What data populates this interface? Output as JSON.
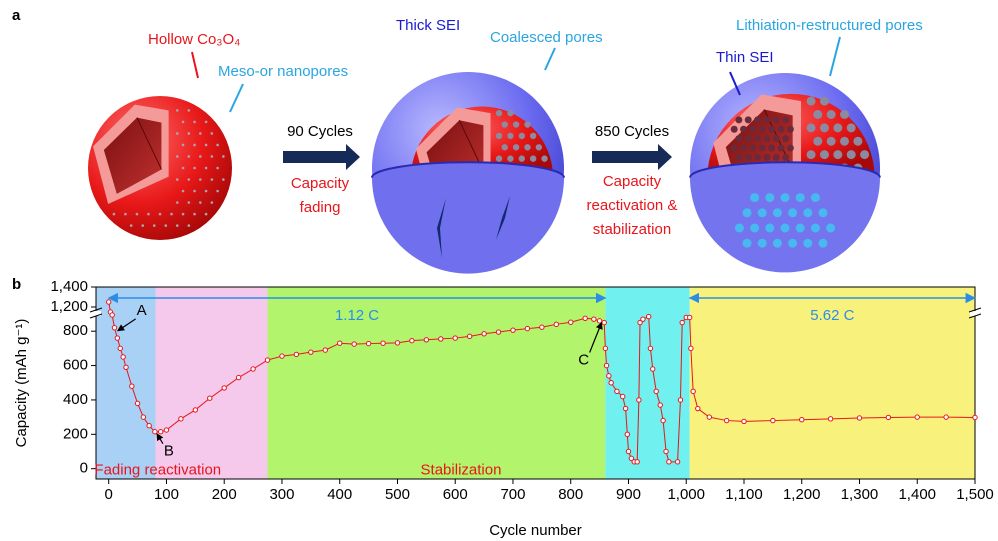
{
  "panel_a": {
    "label": "a",
    "hollow": "Hollow Co₃O₄",
    "pores": "Meso-or nanopores",
    "cycles_90": "90 Cycles",
    "capacity_fading": [
      "Capacity",
      "fading"
    ],
    "thick_sei": "Thick SEI",
    "coalesced": "Coalesced pores",
    "cycles_850": "850 Cycles",
    "capacity_reactivation": [
      "Capacity",
      "reactivation &",
      "stabilization"
    ],
    "thin_sei": "Thin SEI",
    "restructured": "Lithiation-restructured pores"
  },
  "chart_data": {
    "type": "scatter",
    "panel_label": "b",
    "x_label": "Cycle number",
    "y_label": "Capacity (mAh g⁻¹)",
    "xlim": [
      -22,
      1500
    ],
    "xticks": [
      0,
      100,
      200,
      300,
      400,
      500,
      600,
      700,
      800,
      900,
      {
        "value": 1000,
        "label": "1,000"
      },
      {
        "value": 1100,
        "label": "1,100"
      },
      {
        "value": 1200,
        "label": "1,200"
      },
      {
        "value": 1300,
        "label": "1,300"
      },
      {
        "value": 1400,
        "label": "1,400"
      },
      {
        "value": 1500,
        "label": "1,500"
      }
    ],
    "ylim": [
      -60,
      1400
    ],
    "ybreak": [
      900,
      1150
    ],
    "yticks": [
      0,
      200,
      400,
      600,
      800,
      {
        "value": 1200,
        "label": "1,200"
      },
      {
        "value": 1400,
        "label": "1,400"
      }
    ],
    "regions": [
      {
        "start": -22,
        "end": 81,
        "color": "#a9d0f5"
      },
      {
        "start": 81,
        "end": 275,
        "color": "#f4c9ec"
      },
      {
        "start": 275,
        "end": 860,
        "color": "#b2f46c"
      },
      {
        "start": 860,
        "end": 1006,
        "color": "#70f0ef"
      },
      {
        "start": 1006,
        "end": 1500,
        "color": "#f8f27c"
      }
    ],
    "region_labels": [
      {
        "text": "Fading reactivation",
        "x": 85,
        "y": -12
      },
      {
        "text": "Stabilization",
        "x": 610,
        "y": -12
      }
    ],
    "rate_arrows": [
      {
        "label": "1.12 C",
        "start": 0,
        "end": 860,
        "y": 1290
      },
      {
        "label": "5.62 C",
        "start": 1006,
        "end": 1500,
        "y": 1290
      }
    ],
    "annotations": [
      {
        "text": "A",
        "x": 12,
        "y": 790
      },
      {
        "text": "B",
        "x": 80,
        "y": 215
      },
      {
        "text": "C",
        "x": 857,
        "y": 862
      }
    ],
    "series": [
      {
        "color": "#e8151b",
        "x": [
          0,
          3,
          6,
          10,
          15,
          20,
          25,
          30,
          40,
          50,
          60,
          70,
          80,
          90,
          100,
          125,
          150,
          175,
          200,
          225,
          250,
          275,
          300,
          325,
          350,
          375,
          400,
          425,
          450,
          475,
          500,
          525,
          550,
          575,
          600,
          625,
          650,
          675,
          700,
          725,
          750,
          775,
          800,
          825,
          840,
          850,
          858,
          860,
          862,
          866,
          870,
          880,
          890,
          895,
          898,
          900,
          905,
          910,
          915,
          918,
          920,
          925,
          935,
          938,
          942,
          948,
          955,
          960,
          965,
          970,
          985,
          990,
          993,
          1000,
          1006,
          1008,
          1012,
          1020,
          1040,
          1070,
          1100,
          1150,
          1200,
          1250,
          1300,
          1350,
          1400,
          1450,
          1500
        ],
        "values": [
          1250,
          1150,
          1120,
          820,
          760,
          700,
          650,
          590,
          480,
          380,
          300,
          250,
          215,
          215,
          225,
          290,
          342,
          410,
          470,
          530,
          580,
          632,
          655,
          665,
          678,
          690,
          730,
          725,
          728,
          730,
          732,
          745,
          750,
          755,
          760,
          770,
          785,
          795,
          806,
          815,
          823,
          840,
          852,
          875,
          870,
          860,
          850,
          700,
          600,
          540,
          500,
          450,
          420,
          350,
          200,
          100,
          60,
          40,
          40,
          400,
          850,
          870,
          885,
          700,
          580,
          450,
          370,
          280,
          100,
          40,
          40,
          400,
          850,
          880,
          880,
          700,
          450,
          350,
          300,
          280,
          275,
          280,
          285,
          290,
          295,
          298,
          300,
          300,
          298
        ]
      }
    ]
  }
}
